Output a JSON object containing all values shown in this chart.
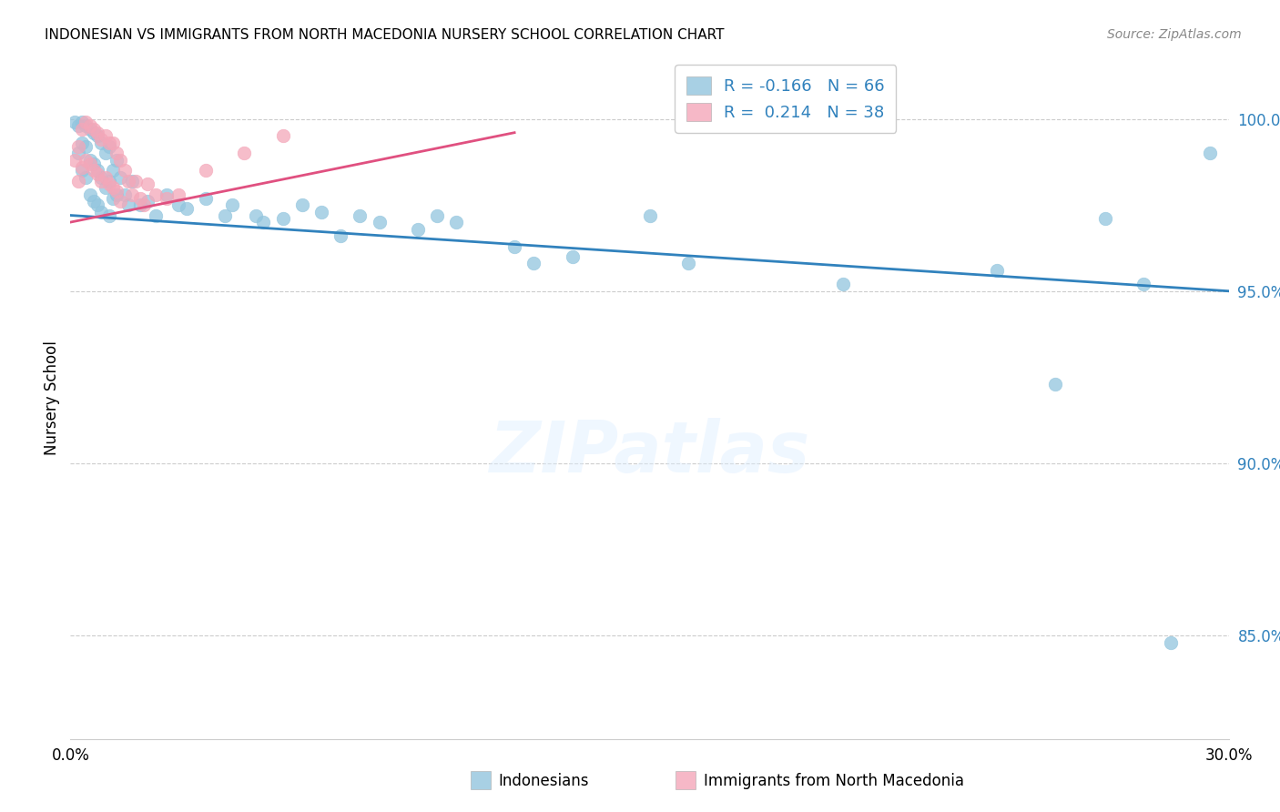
{
  "title": "INDONESIAN VS IMMIGRANTS FROM NORTH MACEDONIA NURSERY SCHOOL CORRELATION CHART",
  "source": "Source: ZipAtlas.com",
  "ylabel": "Nursery School",
  "legend_entry1": "R = -0.166   N = 66",
  "legend_entry2": "R =  0.214   N = 38",
  "legend_label1": "Indonesians",
  "legend_label2": "Immigrants from North Macedonia",
  "blue_color": "#92c5de",
  "pink_color": "#f4a7b9",
  "blue_line_color": "#3182bd",
  "pink_line_color": "#e05080",
  "xlim": [
    0.0,
    0.3
  ],
  "ylim": [
    0.82,
    1.018
  ],
  "yticks": [
    0.85,
    0.9,
    0.95,
    1.0
  ],
  "ytick_labels": [
    "85.0%",
    "90.0%",
    "95.0%",
    "100.0%"
  ],
  "blue_line_x0": 0.0,
  "blue_line_y0": 0.972,
  "blue_line_x1": 0.3,
  "blue_line_y1": 0.95,
  "pink_line_x0": 0.0,
  "pink_line_y0": 0.97,
  "pink_line_x1": 0.115,
  "pink_line_y1": 0.996,
  "indonesians_x": [
    0.001,
    0.002,
    0.002,
    0.003,
    0.003,
    0.003,
    0.004,
    0.004,
    0.004,
    0.005,
    0.005,
    0.005,
    0.006,
    0.006,
    0.006,
    0.007,
    0.007,
    0.007,
    0.008,
    0.008,
    0.008,
    0.009,
    0.009,
    0.01,
    0.01,
    0.01,
    0.011,
    0.011,
    0.012,
    0.012,
    0.013,
    0.014,
    0.015,
    0.016,
    0.018,
    0.02,
    0.022,
    0.025,
    0.028,
    0.03,
    0.035,
    0.04,
    0.042,
    0.048,
    0.05,
    0.055,
    0.06,
    0.065,
    0.07,
    0.075,
    0.08,
    0.09,
    0.095,
    0.1,
    0.115,
    0.12,
    0.13,
    0.15,
    0.16,
    0.2,
    0.24,
    0.255,
    0.268,
    0.278,
    0.285,
    0.295
  ],
  "indonesians_y": [
    0.999,
    0.998,
    0.99,
    0.999,
    0.993,
    0.985,
    0.998,
    0.992,
    0.983,
    0.997,
    0.988,
    0.978,
    0.996,
    0.987,
    0.976,
    0.995,
    0.985,
    0.975,
    0.993,
    0.983,
    0.973,
    0.99,
    0.98,
    0.992,
    0.982,
    0.972,
    0.985,
    0.977,
    0.988,
    0.978,
    0.983,
    0.978,
    0.975,
    0.982,
    0.975,
    0.976,
    0.972,
    0.978,
    0.975,
    0.974,
    0.977,
    0.972,
    0.975,
    0.972,
    0.97,
    0.971,
    0.975,
    0.973,
    0.966,
    0.972,
    0.97,
    0.968,
    0.972,
    0.97,
    0.963,
    0.958,
    0.96,
    0.972,
    0.958,
    0.952,
    0.956,
    0.923,
    0.971,
    0.952,
    0.848,
    0.99
  ],
  "macedonia_x": [
    0.001,
    0.002,
    0.002,
    0.003,
    0.003,
    0.004,
    0.004,
    0.005,
    0.005,
    0.006,
    0.006,
    0.007,
    0.007,
    0.008,
    0.008,
    0.009,
    0.009,
    0.01,
    0.01,
    0.011,
    0.011,
    0.012,
    0.012,
    0.013,
    0.013,
    0.014,
    0.015,
    0.016,
    0.017,
    0.018,
    0.019,
    0.02,
    0.022,
    0.025,
    0.028,
    0.035,
    0.045,
    0.055
  ],
  "macedonia_y": [
    0.988,
    0.992,
    0.982,
    0.997,
    0.986,
    0.999,
    0.988,
    0.998,
    0.987,
    0.997,
    0.985,
    0.996,
    0.984,
    0.994,
    0.982,
    0.995,
    0.983,
    0.993,
    0.981,
    0.993,
    0.98,
    0.99,
    0.979,
    0.988,
    0.976,
    0.985,
    0.982,
    0.978,
    0.982,
    0.977,
    0.975,
    0.981,
    0.978,
    0.977,
    0.978,
    0.985,
    0.99,
    0.995
  ]
}
